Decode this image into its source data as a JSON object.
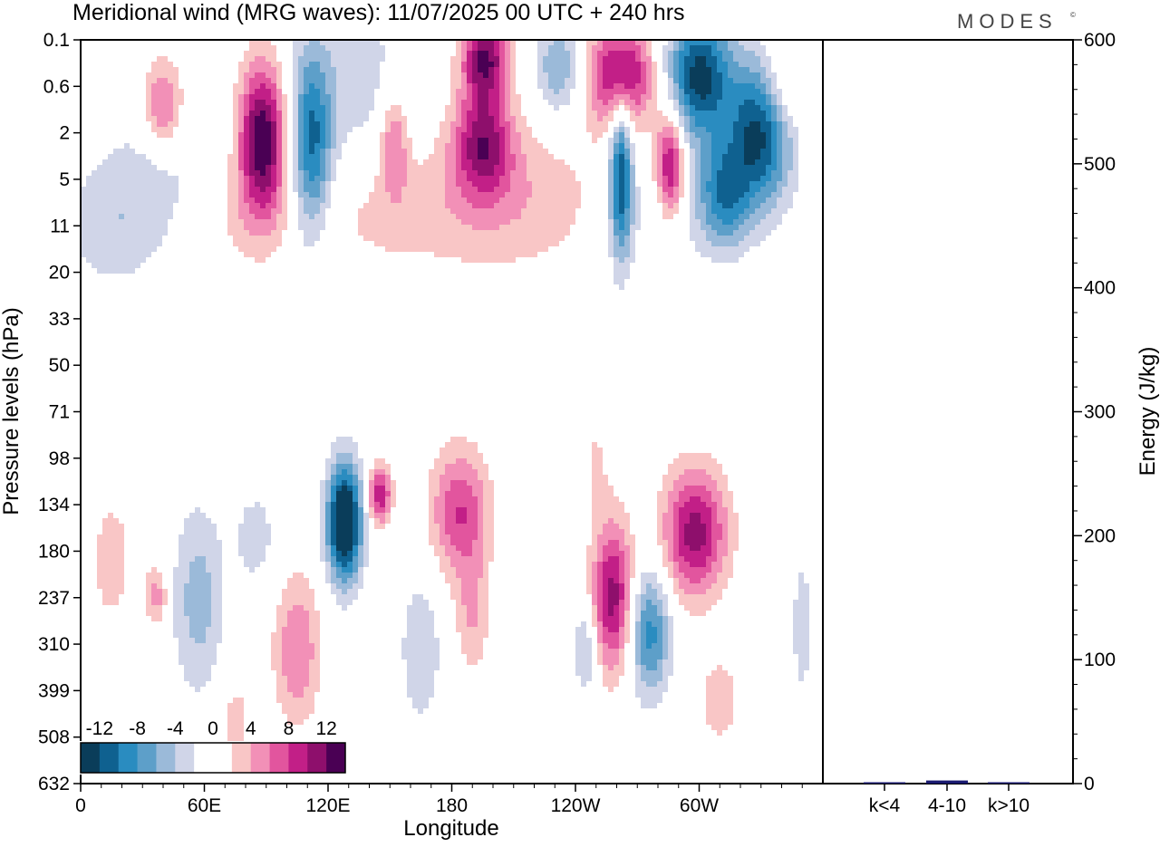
{
  "brand": "MODES",
  "brand_mark": "©",
  "chart_data": [
    {
      "type": "heatmap",
      "title": "Meridional wind (MRG waves):  11/07/2025  00 UTC  + 240 hrs",
      "xlabel": "Longitude",
      "ylabel": "Pressure levels (hPa)",
      "x_ticks": [
        "0",
        "60E",
        "120E",
        "180",
        "120W",
        "60W"
      ],
      "y_ticks": [
        "0.1",
        "0.6",
        "2",
        "5",
        "11",
        "20",
        "33",
        "50",
        "71",
        "98",
        "134",
        "180",
        "237",
        "310",
        "399",
        "508",
        "632"
      ],
      "colorbar": {
        "labels": [
          "-12",
          "-8",
          "-4",
          "0",
          "4",
          "8",
          "12"
        ],
        "levels": [
          -14,
          -12,
          -10,
          -8,
          -6,
          -4,
          -2,
          0,
          2,
          4,
          6,
          8,
          10,
          12,
          14
        ],
        "colors": [
          "#0a3d5a",
          "#0f6190",
          "#2a8cc0",
          "#5d9fc9",
          "#9bbad9",
          "#d0d5e8",
          "#ffffff",
          "#ffffff",
          "#f9c6c6",
          "#f290b7",
          "#e2559e",
          "#c21f87",
          "#8e0f6c",
          "#4a0054"
        ]
      },
      "blobs": [
        {
          "lon": 40,
          "lev": 1.0,
          "sx": 7,
          "sy": 0.22,
          "amp": 7
        },
        {
          "lon": 88,
          "lev": 2.2,
          "sx": 8,
          "sy": 0.35,
          "amp": 14
        },
        {
          "lon": 112,
          "lev": 2.6,
          "sx": 7,
          "sy": 0.45,
          "amp": -10
        },
        {
          "lon": 135,
          "lev": 0.6,
          "sx": 20,
          "sy": 0.45,
          "amp": -3
        },
        {
          "lon": 152,
          "lev": 2.3,
          "sx": 5,
          "sy": 0.25,
          "amp": 6
        },
        {
          "lon": 195,
          "lev": 2.4,
          "sx": 10,
          "sy": 0.25,
          "amp": 10
        },
        {
          "lon": 196,
          "lev": 0.2,
          "sx": 8,
          "sy": 0.2,
          "amp": 12
        },
        {
          "lon": 232,
          "lev": 0.3,
          "sx": 8,
          "sy": 0.22,
          "amp": -6
        },
        {
          "lon": 262,
          "lev": 0.4,
          "sx": 11,
          "sy": 0.25,
          "amp": 12
        },
        {
          "lon": 262,
          "lev": 4.5,
          "sx": 4,
          "sy": 0.4,
          "amp": -12
        },
        {
          "lon": 286,
          "lev": 3.8,
          "sx": 5,
          "sy": 0.25,
          "amp": 11
        },
        {
          "lon": 300,
          "lev": 0.4,
          "sx": 11,
          "sy": 0.3,
          "amp": -13
        },
        {
          "lon": 330,
          "lev": 1.9,
          "sx": 11,
          "sy": 0.35,
          "amp": -13
        },
        {
          "lon": 312,
          "lev": 6.5,
          "sx": 9,
          "sy": 0.25,
          "amp": -9
        },
        {
          "lon": 340,
          "lev": 0.6,
          "sx": 8,
          "sy": 0.25,
          "amp": 5
        },
        {
          "lon": 45,
          "lev": 4.5,
          "sx": 25,
          "sy": 0.35,
          "amp": -3
        },
        {
          "lon": 75,
          "lev": 8,
          "sx": 20,
          "sy": 0.3,
          "amp": 3
        },
        {
          "lon": 205,
          "lev": 7,
          "sx": 35,
          "sy": 0.35,
          "amp": 4
        },
        {
          "lon": 140,
          "lev": 9,
          "sx": 25,
          "sy": 0.3,
          "amp": 2
        },
        {
          "lon": 280,
          "lev": 9,
          "sx": 20,
          "sy": 0.3,
          "amp": -2
        },
        {
          "lon": 15,
          "lev": 11.5,
          "sx": 18,
          "sy": 0.3,
          "amp": -3
        },
        {
          "lon": 128,
          "lev": 150,
          "sx": 6,
          "sy": 0.28,
          "amp": -17
        },
        {
          "lon": 145,
          "lev": 125,
          "sx": 4,
          "sy": 0.14,
          "amp": 10
        },
        {
          "lon": 184,
          "lev": 140,
          "sx": 10,
          "sy": 0.3,
          "amp": 8
        },
        {
          "lon": 190,
          "lev": 260,
          "sx": 6,
          "sy": 0.3,
          "amp": 4
        },
        {
          "lon": 258,
          "lev": 235,
          "sx": 7,
          "sy": 0.35,
          "amp": 11
        },
        {
          "lon": 276,
          "lev": 290,
          "sx": 7,
          "sy": 0.3,
          "amp": -9
        },
        {
          "lon": 298,
          "lev": 160,
          "sx": 11,
          "sy": 0.3,
          "amp": 11
        },
        {
          "lon": 37,
          "lev": 235,
          "sx": 4,
          "sy": 0.15,
          "amp": 5
        },
        {
          "lon": 57,
          "lev": 240,
          "sx": 9,
          "sy": 0.45,
          "amp": -5
        },
        {
          "lon": 105,
          "lev": 320,
          "sx": 8,
          "sy": 0.35,
          "amp": 6
        },
        {
          "lon": 165,
          "lev": 320,
          "sx": 7,
          "sy": 0.35,
          "amp": -4
        },
        {
          "lon": 245,
          "lev": 320,
          "sx": 4,
          "sy": 0.2,
          "amp": -5
        },
        {
          "lon": 85,
          "lev": 165,
          "sx": 8,
          "sy": 0.25,
          "amp": -3
        },
        {
          "lon": 350,
          "lev": 280,
          "sx": 4,
          "sy": 0.4,
          "amp": -3
        },
        {
          "lon": 15,
          "lev": 190,
          "sx": 8,
          "sy": 0.35,
          "amp": 3
        },
        {
          "lon": 310,
          "lev": 420,
          "sx": 8,
          "sy": 0.25,
          "amp": 3
        },
        {
          "lon": 250,
          "lev": 95,
          "sx": 6,
          "sy": 0.3,
          "amp": 2
        },
        {
          "lon": 75,
          "lev": 460,
          "sx": 6,
          "sy": 0.2,
          "amp": 3
        }
      ]
    },
    {
      "type": "bar",
      "ylabel": "Energy (J/kg)",
      "categories": [
        "k<4",
        "4-10",
        "k>10"
      ],
      "values": [
        0.5,
        2.5,
        0.3
      ],
      "ylim": [
        0,
        600
      ],
      "y_ticks": [
        "0",
        "100",
        "200",
        "300",
        "400",
        "500",
        "600"
      ],
      "bar_color": "#1a1a70"
    }
  ]
}
